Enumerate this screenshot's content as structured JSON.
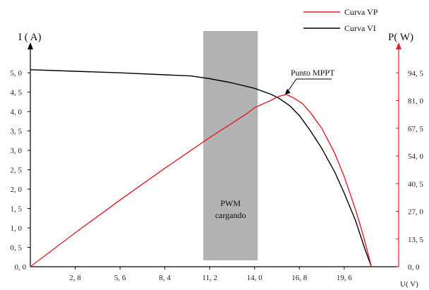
{
  "chart_data": {
    "type": "line",
    "left_axis_title": "I ( A)",
    "right_axis_title": "P( W)",
    "xlabel": "U( V)",
    "x_ticks": [
      "2, 8",
      "5, 6",
      "8, 4",
      "11, 2",
      "14, 0",
      "16, 8",
      "19, 6"
    ],
    "x_tick_values": [
      2.8,
      5.6,
      8.4,
      11.2,
      14.0,
      16.8,
      19.6
    ],
    "origin_label": "0, 0",
    "xlim": [
      0,
      23.0
    ],
    "left_ticks": [
      "0, 5",
      "1, 0",
      "1, 5",
      "2, 0",
      "2, 5",
      "3, 0",
      "3, 5",
      "4, 0",
      "4, 5",
      "5, 0"
    ],
    "left_tick_values": [
      0.5,
      1.0,
      1.5,
      2.0,
      2.5,
      3.0,
      3.5,
      4.0,
      4.5,
      5.0
    ],
    "left_ylim": [
      0,
      5.75
    ],
    "right_ticks": [
      "0, 0",
      "13, 5",
      "27, 0",
      "40, 5",
      "54, 0",
      "67, 5",
      "81, 0",
      "94, 5"
    ],
    "right_tick_values": [
      0,
      13.5,
      27.0,
      40.5,
      54.0,
      67.5,
      81.0,
      94.5
    ],
    "right_ylim": [
      0,
      108.7
    ],
    "series": [
      {
        "name": "Curva VI",
        "axis": "left",
        "color": "#000000",
        "x": [
          0,
          2.8,
          5.6,
          8.4,
          10.0,
          11.2,
          12.5,
          14.0,
          15.0,
          15.5,
          16.2,
          16.8,
          17.5,
          18.2,
          19.0,
          19.6,
          20.3,
          20.9,
          21.3
        ],
        "y": [
          5.08,
          5.04,
          5.0,
          4.95,
          4.92,
          4.85,
          4.75,
          4.6,
          4.45,
          4.35,
          4.15,
          3.9,
          3.5,
          3.05,
          2.45,
          1.9,
          1.2,
          0.45,
          0.0
        ]
      },
      {
        "name": "Curva VP",
        "axis": "right",
        "color": "#e0202a",
        "x": [
          0,
          2.8,
          5.6,
          8.4,
          11.2,
          12.5,
          13.5,
          14.0,
          15.0,
          15.5,
          16.0,
          16.5,
          17.0,
          17.5,
          18.2,
          19.0,
          19.6,
          20.3,
          20.8,
          21.3
        ],
        "y": [
          0,
          16.5,
          32.5,
          48.0,
          63.0,
          69.5,
          74.5,
          77.5,
          81.0,
          83.0,
          84.0,
          82.0,
          79.5,
          75.0,
          67.5,
          55.5,
          44.0,
          28.0,
          15.0,
          0.0
        ]
      }
    ],
    "shaded_region": {
      "x_start": 10.8,
      "x_end": 14.2,
      "color": "#b0b2b4",
      "label_line1": "PWM",
      "label_line2": "cargando"
    },
    "annotations": [
      {
        "text": "Punto MPPT",
        "x": 15.9,
        "y_power": 84.0
      }
    ],
    "legend_position": "top-right"
  }
}
